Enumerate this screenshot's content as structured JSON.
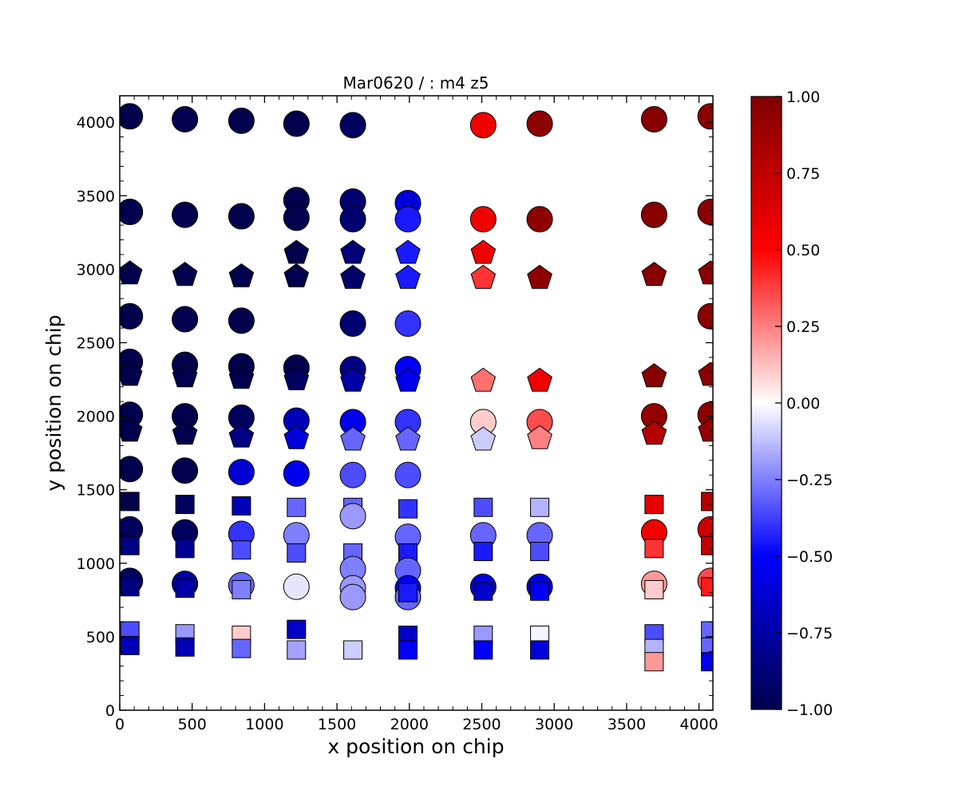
{
  "chart_data": {
    "type": "scatter",
    "title": "Mar0620 / : m4 z5",
    "xlabel": "x position on chip",
    "ylabel": "y position on chip",
    "xlim": [
      0,
      4096
    ],
    "ylim": [
      0,
      4180
    ],
    "x_ticks": [
      "0",
      "500",
      "1000",
      "1500",
      "2000",
      "2500",
      "3000",
      "3500",
      "4000"
    ],
    "y_ticks": [
      "0",
      "500",
      "1000",
      "1500",
      "2000",
      "2500",
      "3000",
      "3500",
      "4000"
    ],
    "grid": false,
    "colorbar": {
      "colormap": "seismic",
      "range": [
        -1.0,
        1.0
      ],
      "ticks": [
        "−1.00",
        "−0.75",
        "−0.50",
        "−0.25",
        "0.00",
        "0.25",
        "0.50",
        "0.75",
        "1.00"
      ]
    },
    "marker_shapes": [
      "circle",
      "pentagon",
      "square"
    ],
    "points": [
      {
        "x": 70,
        "y": 4040,
        "v": -1.0,
        "m": "circle"
      },
      {
        "x": 450,
        "y": 4020,
        "v": -1.0,
        "m": "circle"
      },
      {
        "x": 840,
        "y": 4010,
        "v": -1.0,
        "m": "circle"
      },
      {
        "x": 1220,
        "y": 3990,
        "v": -1.0,
        "m": "circle"
      },
      {
        "x": 1610,
        "y": 3980,
        "v": -0.95,
        "m": "circle"
      },
      {
        "x": 2510,
        "y": 3980,
        "v": 0.55,
        "m": "circle"
      },
      {
        "x": 2900,
        "y": 3990,
        "v": 0.95,
        "m": "circle"
      },
      {
        "x": 3690,
        "y": 4020,
        "v": 0.97,
        "m": "circle"
      },
      {
        "x": 4080,
        "y": 4040,
        "v": 0.95,
        "m": "circle"
      },
      {
        "x": 1220,
        "y": 3470,
        "v": -1.0,
        "m": "circle"
      },
      {
        "x": 1610,
        "y": 3460,
        "v": -0.9,
        "m": "circle"
      },
      {
        "x": 1990,
        "y": 3450,
        "v": -0.6,
        "m": "circle"
      },
      {
        "x": 70,
        "y": 3390,
        "v": -1.0,
        "m": "circle"
      },
      {
        "x": 450,
        "y": 3370,
        "v": -1.0,
        "m": "circle"
      },
      {
        "x": 840,
        "y": 3360,
        "v": -1.0,
        "m": "circle"
      },
      {
        "x": 1220,
        "y": 3350,
        "v": -1.0,
        "m": "circle"
      },
      {
        "x": 1610,
        "y": 3340,
        "v": -0.9,
        "m": "circle"
      },
      {
        "x": 1990,
        "y": 3340,
        "v": -0.45,
        "m": "circle"
      },
      {
        "x": 2510,
        "y": 3340,
        "v": 0.55,
        "m": "circle"
      },
      {
        "x": 2900,
        "y": 3340,
        "v": 0.95,
        "m": "circle"
      },
      {
        "x": 3690,
        "y": 3370,
        "v": 0.97,
        "m": "circle"
      },
      {
        "x": 4080,
        "y": 3390,
        "v": 0.95,
        "m": "circle"
      },
      {
        "x": 1220,
        "y": 3110,
        "v": -1.0,
        "m": "pentagon"
      },
      {
        "x": 1610,
        "y": 3110,
        "v": -0.88,
        "m": "pentagon"
      },
      {
        "x": 1990,
        "y": 3110,
        "v": -0.45,
        "m": "pentagon"
      },
      {
        "x": 2510,
        "y": 3110,
        "v": 0.55,
        "m": "pentagon"
      },
      {
        "x": 70,
        "y": 2970,
        "v": -1.0,
        "m": "pentagon"
      },
      {
        "x": 450,
        "y": 2960,
        "v": -1.0,
        "m": "pentagon"
      },
      {
        "x": 840,
        "y": 2950,
        "v": -1.0,
        "m": "pentagon"
      },
      {
        "x": 1220,
        "y": 2950,
        "v": -1.0,
        "m": "pentagon"
      },
      {
        "x": 1610,
        "y": 2940,
        "v": -0.92,
        "m": "pentagon"
      },
      {
        "x": 1990,
        "y": 2940,
        "v": -0.45,
        "m": "pentagon"
      },
      {
        "x": 2510,
        "y": 2940,
        "v": 0.4,
        "m": "pentagon"
      },
      {
        "x": 2900,
        "y": 2940,
        "v": 0.95,
        "m": "pentagon"
      },
      {
        "x": 3690,
        "y": 2960,
        "v": 0.97,
        "m": "pentagon"
      },
      {
        "x": 4080,
        "y": 2970,
        "v": 0.95,
        "m": "pentagon"
      },
      {
        "x": 70,
        "y": 2680,
        "v": -1.0,
        "m": "circle"
      },
      {
        "x": 450,
        "y": 2660,
        "v": -1.0,
        "m": "circle"
      },
      {
        "x": 840,
        "y": 2650,
        "v": -1.0,
        "m": "circle"
      },
      {
        "x": 1610,
        "y": 2630,
        "v": -0.9,
        "m": "circle"
      },
      {
        "x": 1990,
        "y": 2630,
        "v": -0.4,
        "m": "circle"
      },
      {
        "x": 4080,
        "y": 2680,
        "v": 0.95,
        "m": "circle"
      },
      {
        "x": 70,
        "y": 2370,
        "v": -1.0,
        "m": "circle"
      },
      {
        "x": 450,
        "y": 2350,
        "v": -1.0,
        "m": "circle"
      },
      {
        "x": 840,
        "y": 2340,
        "v": -1.0,
        "m": "circle"
      },
      {
        "x": 1220,
        "y": 2330,
        "v": -1.0,
        "m": "circle"
      },
      {
        "x": 1610,
        "y": 2320,
        "v": -0.85,
        "m": "circle"
      },
      {
        "x": 1990,
        "y": 2320,
        "v": -0.5,
        "m": "circle"
      },
      {
        "x": 70,
        "y": 2280,
        "v": -1.0,
        "m": "pentagon"
      },
      {
        "x": 450,
        "y": 2270,
        "v": -1.0,
        "m": "pentagon"
      },
      {
        "x": 840,
        "y": 2260,
        "v": -1.0,
        "m": "pentagon"
      },
      {
        "x": 1220,
        "y": 2250,
        "v": -0.95,
        "m": "pentagon"
      },
      {
        "x": 1610,
        "y": 2240,
        "v": -0.75,
        "m": "pentagon"
      },
      {
        "x": 1990,
        "y": 2240,
        "v": -0.55,
        "m": "pentagon"
      },
      {
        "x": 2510,
        "y": 2240,
        "v": 0.28,
        "m": "pentagon"
      },
      {
        "x": 2900,
        "y": 2240,
        "v": 0.55,
        "m": "pentagon"
      },
      {
        "x": 3690,
        "y": 2270,
        "v": 0.97,
        "m": "pentagon"
      },
      {
        "x": 4080,
        "y": 2280,
        "v": 0.95,
        "m": "pentagon"
      },
      {
        "x": 70,
        "y": 2010,
        "v": -1.0,
        "m": "circle"
      },
      {
        "x": 450,
        "y": 2000,
        "v": -1.0,
        "m": "circle"
      },
      {
        "x": 840,
        "y": 1990,
        "v": -0.95,
        "m": "circle"
      },
      {
        "x": 1220,
        "y": 1970,
        "v": -0.7,
        "m": "circle"
      },
      {
        "x": 1610,
        "y": 1960,
        "v": -0.55,
        "m": "circle"
      },
      {
        "x": 1990,
        "y": 1960,
        "v": -0.4,
        "m": "circle"
      },
      {
        "x": 2510,
        "y": 1960,
        "v": 0.1,
        "m": "circle"
      },
      {
        "x": 2900,
        "y": 1960,
        "v": 0.35,
        "m": "circle"
      },
      {
        "x": 3690,
        "y": 2000,
        "v": 0.92,
        "m": "circle"
      },
      {
        "x": 4080,
        "y": 2010,
        "v": 0.95,
        "m": "circle"
      },
      {
        "x": 70,
        "y": 1900,
        "v": -1.0,
        "m": "pentagon"
      },
      {
        "x": 450,
        "y": 1880,
        "v": -1.0,
        "m": "pentagon"
      },
      {
        "x": 840,
        "y": 1860,
        "v": -0.85,
        "m": "pentagon"
      },
      {
        "x": 1220,
        "y": 1850,
        "v": -0.6,
        "m": "pentagon"
      },
      {
        "x": 1610,
        "y": 1840,
        "v": -0.3,
        "m": "pentagon"
      },
      {
        "x": 1990,
        "y": 1840,
        "v": -0.3,
        "m": "pentagon"
      },
      {
        "x": 2510,
        "y": 1840,
        "v": -0.1,
        "m": "pentagon"
      },
      {
        "x": 2900,
        "y": 1850,
        "v": 0.25,
        "m": "pentagon"
      },
      {
        "x": 3690,
        "y": 1880,
        "v": 0.8,
        "m": "pentagon"
      },
      {
        "x": 4080,
        "y": 1900,
        "v": 0.92,
        "m": "pentagon"
      },
      {
        "x": 70,
        "y": 1640,
        "v": -1.0,
        "m": "circle"
      },
      {
        "x": 450,
        "y": 1630,
        "v": -1.0,
        "m": "circle"
      },
      {
        "x": 840,
        "y": 1620,
        "v": -0.62,
        "m": "circle"
      },
      {
        "x": 1220,
        "y": 1610,
        "v": -0.55,
        "m": "circle"
      },
      {
        "x": 1610,
        "y": 1600,
        "v": -0.35,
        "m": "circle"
      },
      {
        "x": 1990,
        "y": 1600,
        "v": -0.35,
        "m": "circle"
      },
      {
        "x": 70,
        "y": 1420,
        "v": -1.0,
        "m": "square"
      },
      {
        "x": 450,
        "y": 1400,
        "v": -0.95,
        "m": "square"
      },
      {
        "x": 840,
        "y": 1390,
        "v": -0.7,
        "m": "square"
      },
      {
        "x": 1220,
        "y": 1380,
        "v": -0.3,
        "m": "square"
      },
      {
        "x": 1610,
        "y": 1380,
        "v": -0.3,
        "m": "square"
      },
      {
        "x": 1990,
        "y": 1370,
        "v": -0.4,
        "m": "square"
      },
      {
        "x": 2510,
        "y": 1380,
        "v": -0.35,
        "m": "square"
      },
      {
        "x": 2900,
        "y": 1380,
        "v": -0.15,
        "m": "square"
      },
      {
        "x": 3690,
        "y": 1400,
        "v": 0.6,
        "m": "square"
      },
      {
        "x": 4080,
        "y": 1420,
        "v": 0.8,
        "m": "square"
      },
      {
        "x": 1610,
        "y": 1320,
        "v": -0.2,
        "m": "circle"
      },
      {
        "x": 70,
        "y": 1230,
        "v": -0.95,
        "m": "circle"
      },
      {
        "x": 450,
        "y": 1210,
        "v": -0.95,
        "m": "circle"
      },
      {
        "x": 840,
        "y": 1200,
        "v": -0.4,
        "m": "circle"
      },
      {
        "x": 1220,
        "y": 1190,
        "v": -0.25,
        "m": "circle"
      },
      {
        "x": 1990,
        "y": 1180,
        "v": -0.3,
        "m": "circle"
      },
      {
        "x": 2510,
        "y": 1190,
        "v": -0.3,
        "m": "circle"
      },
      {
        "x": 2900,
        "y": 1190,
        "v": -0.3,
        "m": "circle"
      },
      {
        "x": 3690,
        "y": 1210,
        "v": 0.55,
        "m": "circle"
      },
      {
        "x": 4080,
        "y": 1230,
        "v": 0.7,
        "m": "circle"
      },
      {
        "x": 70,
        "y": 1120,
        "v": -0.85,
        "m": "square"
      },
      {
        "x": 450,
        "y": 1100,
        "v": -0.8,
        "m": "square"
      },
      {
        "x": 840,
        "y": 1090,
        "v": -0.35,
        "m": "square"
      },
      {
        "x": 1220,
        "y": 1070,
        "v": -0.35,
        "m": "square"
      },
      {
        "x": 1610,
        "y": 1070,
        "v": -0.3,
        "m": "square"
      },
      {
        "x": 1990,
        "y": 1070,
        "v": -0.45,
        "m": "square"
      },
      {
        "x": 2510,
        "y": 1080,
        "v": -0.45,
        "m": "square"
      },
      {
        "x": 2900,
        "y": 1080,
        "v": -0.35,
        "m": "square"
      },
      {
        "x": 3690,
        "y": 1100,
        "v": 0.4,
        "m": "square"
      },
      {
        "x": 4080,
        "y": 1120,
        "v": 0.75,
        "m": "square"
      },
      {
        "x": 1610,
        "y": 960,
        "v": -0.25,
        "m": "circle"
      },
      {
        "x": 1990,
        "y": 950,
        "v": -0.3,
        "m": "circle"
      },
      {
        "x": 70,
        "y": 880,
        "v": -0.95,
        "m": "circle"
      },
      {
        "x": 450,
        "y": 860,
        "v": -0.75,
        "m": "circle"
      },
      {
        "x": 840,
        "y": 850,
        "v": -0.3,
        "m": "circle"
      },
      {
        "x": 1220,
        "y": 840,
        "v": -0.05,
        "m": "circle"
      },
      {
        "x": 1610,
        "y": 830,
        "v": -0.2,
        "m": "circle"
      },
      {
        "x": 1990,
        "y": 830,
        "v": -0.5,
        "m": "circle"
      },
      {
        "x": 2510,
        "y": 840,
        "v": -0.6,
        "m": "circle"
      },
      {
        "x": 2900,
        "y": 840,
        "v": -0.6,
        "m": "circle"
      },
      {
        "x": 3690,
        "y": 860,
        "v": 0.2,
        "m": "circle"
      },
      {
        "x": 4080,
        "y": 880,
        "v": 0.35,
        "m": "circle"
      },
      {
        "x": 1610,
        "y": 770,
        "v": -0.2,
        "m": "circle"
      },
      {
        "x": 1990,
        "y": 770,
        "v": -0.3,
        "m": "circle"
      },
      {
        "x": 70,
        "y": 840,
        "v": -0.85,
        "m": "square"
      },
      {
        "x": 450,
        "y": 830,
        "v": -0.75,
        "m": "square"
      },
      {
        "x": 840,
        "y": 820,
        "v": -0.25,
        "m": "square"
      },
      {
        "x": 1990,
        "y": 800,
        "v": -0.45,
        "m": "square"
      },
      {
        "x": 2510,
        "y": 810,
        "v": -0.65,
        "m": "square"
      },
      {
        "x": 2900,
        "y": 810,
        "v": -0.5,
        "m": "square"
      },
      {
        "x": 3690,
        "y": 820,
        "v": 0.1,
        "m": "square"
      },
      {
        "x": 4080,
        "y": 840,
        "v": 0.45,
        "m": "square"
      },
      {
        "x": 70,
        "y": 540,
        "v": -0.35,
        "m": "square"
      },
      {
        "x": 450,
        "y": 520,
        "v": -0.2,
        "m": "square"
      },
      {
        "x": 840,
        "y": 510,
        "v": 0.1,
        "m": "square"
      },
      {
        "x": 1220,
        "y": 550,
        "v": -0.65,
        "m": "square"
      },
      {
        "x": 1990,
        "y": 510,
        "v": -0.65,
        "m": "square"
      },
      {
        "x": 2510,
        "y": 510,
        "v": -0.2,
        "m": "square"
      },
      {
        "x": 2900,
        "y": 510,
        "v": -0.02,
        "m": "square"
      },
      {
        "x": 3690,
        "y": 520,
        "v": -0.35,
        "m": "square"
      },
      {
        "x": 4080,
        "y": 540,
        "v": -0.3,
        "m": "square"
      },
      {
        "x": 70,
        "y": 440,
        "v": -0.7,
        "m": "square"
      },
      {
        "x": 450,
        "y": 430,
        "v": -0.7,
        "m": "square"
      },
      {
        "x": 840,
        "y": 420,
        "v": -0.3,
        "m": "square"
      },
      {
        "x": 1220,
        "y": 410,
        "v": -0.18,
        "m": "square"
      },
      {
        "x": 1610,
        "y": 410,
        "v": -0.1,
        "m": "square"
      },
      {
        "x": 1990,
        "y": 410,
        "v": -0.5,
        "m": "square"
      },
      {
        "x": 2510,
        "y": 410,
        "v": -0.5,
        "m": "square"
      },
      {
        "x": 2900,
        "y": 410,
        "v": -0.6,
        "m": "square"
      },
      {
        "x": 3690,
        "y": 420,
        "v": -0.15,
        "m": "square"
      },
      {
        "x": 4080,
        "y": 430,
        "v": -0.3,
        "m": "square"
      },
      {
        "x": 3690,
        "y": 330,
        "v": 0.2,
        "m": "square"
      },
      {
        "x": 4080,
        "y": 330,
        "v": -0.55,
        "m": "square"
      }
    ]
  }
}
